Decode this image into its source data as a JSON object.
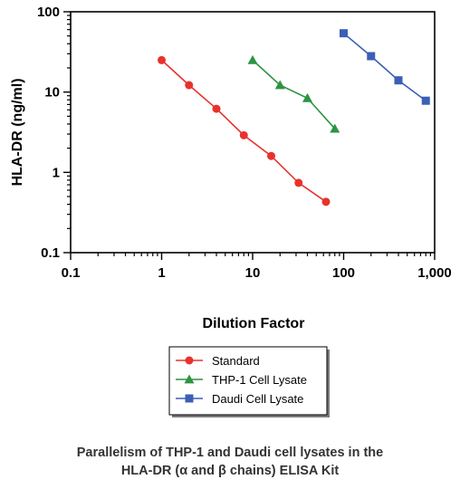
{
  "chart_data": {
    "type": "scatter",
    "xscale": "log",
    "yscale": "log",
    "xlim": [
      0.1,
      1000
    ],
    "ylim": [
      0.1,
      100
    ],
    "xticks": [
      "0.1",
      "1",
      "10",
      "100",
      "1,000"
    ],
    "yticks": [
      "0.1",
      "1",
      "10",
      "100"
    ],
    "xlabel": "Dilution Factor",
    "ylabel": "HLA-DR (ng/ml)",
    "grid": false,
    "legend_position": "bottom-center",
    "series": [
      {
        "name": "Standard",
        "marker": "circle",
        "color": "#e8322c",
        "x": [
          1,
          2,
          4,
          8,
          16,
          32,
          64
        ],
        "y": [
          25,
          12.2,
          6.2,
          2.9,
          1.6,
          0.74,
          0.43
        ]
      },
      {
        "name": "THP-1 Cell Lysate",
        "marker": "triangle",
        "color": "#2c9442",
        "x": [
          10,
          20,
          40,
          80
        ],
        "y": [
          25,
          12.2,
          8.4,
          3.5
        ]
      },
      {
        "name": "Daudi Cell Lysate",
        "marker": "square",
        "color": "#3a5fb5",
        "x": [
          100,
          200,
          400,
          800
        ],
        "y": [
          54,
          28,
          14,
          7.8
        ]
      }
    ]
  },
  "caption": {
    "line1": "Parallelism of THP-1 and Daudi cell lysates in the",
    "line2": "HLA-DR (α and β chains) ELISA Kit"
  }
}
